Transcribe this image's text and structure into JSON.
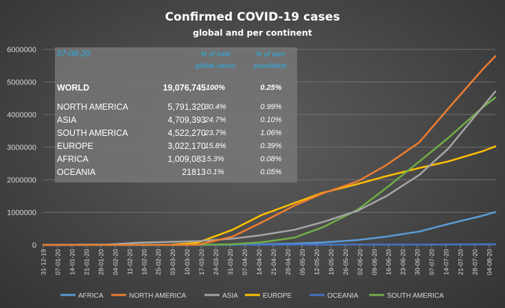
{
  "title": "Confirmed  COVID-19  cases",
  "subtitle": "global and per continent",
  "table": {
    "date": "07-08-20",
    "col_pct_total": "% of total global cases",
    "col_pct_total_lines": [
      "% of total",
      "global cases"
    ],
    "col_pct_own": "% of own population",
    "col_pct_own_lines": [
      "% of own",
      "population"
    ],
    "rows": [
      {
        "name": "WORLD",
        "cases": "19,076,745",
        "pct_total": "100%",
        "pct_pop": "0.25%"
      },
      {
        "name": "NORTH AMERICA",
        "cases": "5,791,320",
        "pct_total": "30.4%",
        "pct_pop": "0.99%"
      },
      {
        "name": "ASIA",
        "cases": "4,709,393",
        "pct_total": "24.7%",
        "pct_pop": "0.10%"
      },
      {
        "name": "SOUTH AMERICA",
        "cases": "4,522,270",
        "pct_total": "23.7%",
        "pct_pop": "1.06%"
      },
      {
        "name": "EUROPE",
        "cases": "3,022,170",
        "pct_total": "15.8%",
        "pct_pop": "0.39%"
      },
      {
        "name": "AFRICA",
        "cases": "1,009,083",
        "pct_total": "5.3%",
        "pct_pop": "0.08%"
      },
      {
        "name": "OCEANIA",
        "cases": "21813",
        "pct_total": "0.1%",
        "pct_pop": "0.05%"
      }
    ]
  },
  "chart_data": {
    "type": "line",
    "title": "Confirmed  COVID-19  cases",
    "subtitle": "global and per continent",
    "xlabel": "",
    "ylabel": "",
    "ylim": [
      0,
      6000000
    ],
    "yticks": [
      0,
      1000000,
      2000000,
      3000000,
      4000000,
      5000000,
      6000000
    ],
    "ytick_labels": [
      "0",
      "1000000",
      "2000000",
      "3000000",
      "4000000",
      "5000000",
      "6000000"
    ],
    "x_range": [
      "31-12-19",
      "07-08-20"
    ],
    "xtick_labels": [
      "31-12-19",
      "07-01-20",
      "14-01-20",
      "21-01-20",
      "28-01-20",
      "04-02-20",
      "11-02-20",
      "18-02-20",
      "25-02-20",
      "03-03-20",
      "10-03-20",
      "17-03-20",
      "24-03-20",
      "31-03-20",
      "07-04-20",
      "14-04-20",
      "21-04-20",
      "28-04-20",
      "05-05-20",
      "12-05-20",
      "19-05-20",
      "26-05-20",
      "02-06-20",
      "09-06-20",
      "16-06-20",
      "23-06-20",
      "30-06-20",
      "07-07-20",
      "14-07-20",
      "21-07-20",
      "28-07-20",
      "04-08-20"
    ],
    "grid": true,
    "legend_position": "bottom",
    "series": [
      {
        "name": "AFRICA",
        "color": "#5b9bd5",
        "x": [
          "31-12-19",
          "01-03-20",
          "01-04-20",
          "01-05-20",
          "15-05-20",
          "01-06-20",
          "15-06-20",
          "01-07-20",
          "15-07-20",
          "01-08-20",
          "07-08-20"
        ],
        "y": [
          0,
          0,
          5000,
          38000,
          75000,
          150000,
          255000,
          410000,
          640000,
          900000,
          1009083
        ]
      },
      {
        "name": "NORTH AMERICA",
        "color": "#ed7d31",
        "x": [
          "31-12-19",
          "01-03-20",
          "15-03-20",
          "01-04-20",
          "15-04-20",
          "01-05-20",
          "15-05-20",
          "01-06-20",
          "15-06-20",
          "01-07-20",
          "15-07-20",
          "01-08-20",
          "07-08-20"
        ],
        "y": [
          0,
          0,
          5000,
          250000,
          680000,
          1200000,
          1580000,
          1950000,
          2450000,
          3150000,
          4180000,
          5400000,
          5791320
        ]
      },
      {
        "name": "ASIA",
        "color": "#a5a5a5",
        "x": [
          "31-12-19",
          "01-02-20",
          "15-02-20",
          "01-03-20",
          "15-03-20",
          "01-04-20",
          "15-04-20",
          "01-05-20",
          "15-05-20",
          "01-06-20",
          "15-06-20",
          "01-07-20",
          "15-07-20",
          "01-08-20",
          "07-08-20"
        ],
        "y": [
          0,
          12000,
          68000,
          90000,
          115000,
          190000,
          300000,
          460000,
          700000,
          1050000,
          1500000,
          2150000,
          2950000,
          4250000,
          4709393
        ]
      },
      {
        "name": "EUROPE",
        "color": "#ffc000",
        "x": [
          "31-12-19",
          "01-03-20",
          "15-03-20",
          "01-04-20",
          "15-04-20",
          "01-05-20",
          "15-05-20",
          "01-06-20",
          "15-06-20",
          "01-07-20",
          "15-07-20",
          "01-08-20",
          "07-08-20"
        ],
        "y": [
          0,
          3000,
          65000,
          460000,
          910000,
          1280000,
          1600000,
          1870000,
          2110000,
          2360000,
          2560000,
          2880000,
          3022170
        ]
      },
      {
        "name": "OCEANIA",
        "color": "#4472c4",
        "x": [
          "31-12-19",
          "01-03-20",
          "01-04-20",
          "01-05-20",
          "01-06-20",
          "01-07-20",
          "15-07-20",
          "01-08-20",
          "07-08-20"
        ],
        "y": [
          0,
          0,
          5000,
          8000,
          8800,
          9500,
          12000,
          18000,
          21813
        ]
      },
      {
        "name": "SOUTH AMERICA",
        "color": "#70ad47",
        "x": [
          "31-12-19",
          "01-03-20",
          "15-03-20",
          "01-04-20",
          "15-04-20",
          "01-05-20",
          "15-05-20",
          "01-06-20",
          "15-06-20",
          "01-07-20",
          "15-07-20",
          "01-08-20",
          "07-08-20"
        ],
        "y": [
          0,
          0,
          2000,
          18000,
          80000,
          220000,
          540000,
          1080000,
          1750000,
          2560000,
          3280000,
          4230000,
          4522270
        ]
      }
    ]
  }
}
